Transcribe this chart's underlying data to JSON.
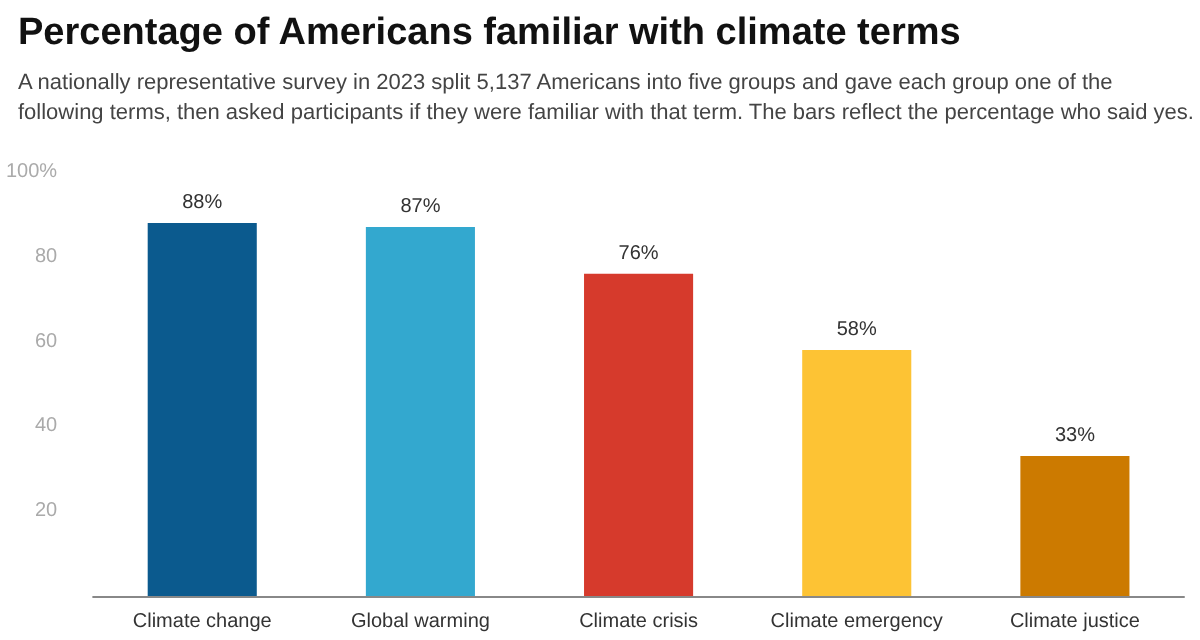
{
  "chart_data": {
    "type": "bar",
    "title": "Percentage of Americans familiar with climate terms",
    "subtitle": "A nationally representative survey in 2023 split 5,137 Americans into five groups and gave each group one of the following terms, then asked participants if they were familiar with that term. The bars reflect the percentage who said yes.",
    "categories": [
      "Climate change",
      "Global warming",
      "Climate crisis",
      "Climate emergency",
      "Climate justice"
    ],
    "values": [
      88,
      87,
      76,
      58,
      33
    ],
    "colors": [
      "#0b5a8e",
      "#33a8cf",
      "#d63a2c",
      "#fdc334",
      "#cc7a00"
    ],
    "value_labels": [
      "88%",
      "87%",
      "76%",
      "58%",
      "33%"
    ],
    "ylim": [
      0,
      100
    ],
    "yticks": [
      20,
      40,
      60,
      80,
      {
        "value": 100,
        "label": "100%"
      }
    ],
    "grid": false
  }
}
